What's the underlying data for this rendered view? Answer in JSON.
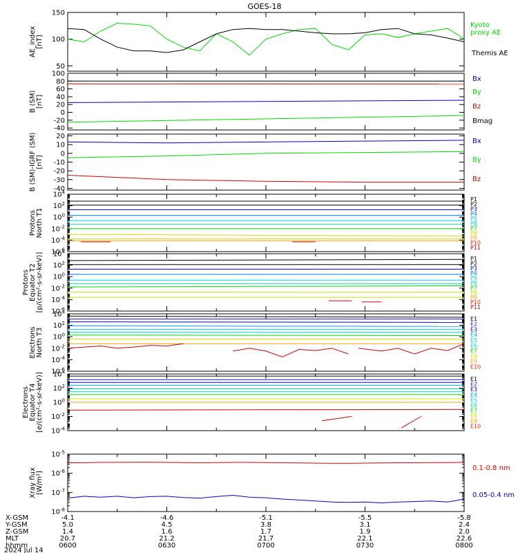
{
  "title": "GOES-18",
  "colors": {
    "P": [
      "#000000",
      "#000000",
      "#0000c8",
      "#0070ff",
      "#00c8ff",
      "#00dcb4",
      "#00dc00",
      "#c8dc00",
      "#ffa000",
      "#e62800",
      "#c80000"
    ],
    "E": [
      "#000000",
      "#1414dc",
      "#0000c8",
      "#00a0ff",
      "#00c8ff",
      "#00dcb4",
      "#00dc00",
      "#d2e600",
      "#ffa000",
      "#e62800",
      "#c80000"
    ],
    "green": "#00dc00",
    "blue": "#0000c8",
    "red": "#d20000",
    "black": "#000000"
  },
  "x_axis": {
    "rows": [
      {
        "label": "X-GSM",
        "values": [
          "-4.1",
          "-4.6",
          "-5.1",
          "-5.5",
          "-5.8"
        ]
      },
      {
        "label": "Y-GSM",
        "values": [
          "5.0",
          "4.5",
          "3.8",
          "3.1",
          "2.4"
        ]
      },
      {
        "label": "Z-GSM",
        "values": [
          "1.4",
          "1.6",
          "1.7",
          "1.9",
          "2.0"
        ]
      },
      {
        "label": "MLT",
        "values": [
          "20.7",
          "21.2",
          "21.7",
          "22.1",
          "22.6"
        ]
      },
      {
        "label": "hhmm",
        "values": [
          "0600",
          "0630",
          "0700",
          "0730",
          "0800"
        ]
      }
    ],
    "date": "2024 Jul 14"
  },
  "chart_data": [
    {
      "type": "line",
      "ylabel": "AE_index\n[nT]",
      "ylim": [
        40,
        150
      ],
      "yticks": [
        "150",
        "100",
        "50"
      ],
      "ytick_values": [
        150,
        100,
        50
      ],
      "x": [
        0,
        5,
        10,
        15,
        20,
        25,
        30,
        35,
        40,
        45,
        50,
        55,
        60,
        65,
        70,
        75,
        80,
        85,
        90,
        95,
        100,
        105,
        110,
        115,
        120
      ],
      "series": [
        {
          "name": "Kyoto proxy AE",
          "color": "green",
          "values": [
            100,
            95,
            115,
            130,
            128,
            125,
            100,
            85,
            78,
            110,
            95,
            70,
            100,
            110,
            118,
            120,
            90,
            80,
            108,
            110,
            103,
            110,
            115,
            120,
            100
          ]
        },
        {
          "name": "Themis AE",
          "color": "black",
          "values": [
            120,
            118,
            100,
            85,
            78,
            78,
            75,
            80,
            95,
            110,
            118,
            120,
            118,
            118,
            115,
            112,
            110,
            110,
            112,
            118,
            120,
            110,
            108,
            102,
            95
          ]
        }
      ],
      "legend": [
        {
          "text": "Kyoto\nproxy AE",
          "color": "green"
        },
        {
          "text": "Themis AE",
          "color": "black"
        }
      ]
    },
    {
      "type": "line",
      "ylabel": "B (SM)\n[nT]",
      "ylim": [
        -45,
        100
      ],
      "yticks": [
        "100",
        "80",
        "60",
        "40",
        "20",
        "0",
        "-20",
        "-40"
      ],
      "ytick_values": [
        100,
        80,
        60,
        40,
        20,
        0,
        -20,
        -40
      ],
      "x": [
        0,
        120
      ],
      "series": [
        {
          "name": "Bmag",
          "color": "black",
          "values": [
            80,
            80
          ]
        },
        {
          "name": "Bz",
          "color": "red",
          "values": [
            73,
            72
          ]
        },
        {
          "name": "Bx",
          "color": "blue",
          "values": [
            25,
            31
          ]
        },
        {
          "name": "By",
          "color": "green",
          "values": [
            -25,
            -8
          ]
        }
      ],
      "legend": [
        {
          "text": "Bx",
          "color": "blue"
        },
        {
          "text": "By",
          "color": "green"
        },
        {
          "text": "Bz",
          "color": "red"
        },
        {
          "text": "Bmag",
          "color": "black"
        }
      ]
    },
    {
      "type": "line",
      "ylabel": "B (SM)-IGRF (SM)\n[nT]",
      "ylim": [
        -42,
        22
      ],
      "yticks": [
        "20",
        "10",
        "0",
        "-10",
        "-20",
        "-30",
        "-40"
      ],
      "ytick_values": [
        20,
        10,
        0,
        -10,
        -20,
        -30,
        -40
      ],
      "x": [
        0,
        30,
        60,
        90,
        120
      ],
      "series": [
        {
          "name": "Bx",
          "color": "blue",
          "values": [
            13,
            12,
            13,
            14,
            15
          ]
        },
        {
          "name": "By",
          "color": "green",
          "values": [
            -5,
            -3,
            0,
            1,
            2
          ]
        },
        {
          "name": "Bz",
          "color": "red",
          "values": [
            -25,
            -30,
            -32,
            -33,
            -33
          ]
        }
      ],
      "legend": [
        {
          "text": "Bx",
          "color": "blue"
        },
        {
          "text": "By",
          "color": "green"
        },
        {
          "text": "Bz",
          "color": "red"
        }
      ]
    },
    {
      "type": "line",
      "scale": "log",
      "ylabel": "Protons\nNorth T1",
      "ylim": [
        -6,
        4
      ],
      "yticks": [
        "10^4",
        "10^2",
        "10^0",
        "10^-2",
        "10^-4",
        "10^-6"
      ],
      "ytick_values": [
        4,
        2,
        0,
        -2,
        -4,
        -6
      ],
      "x": [
        0,
        120
      ],
      "series": [
        {
          "name": "P1",
          "color": "P.0",
          "values": [
            2.8,
            2.8
          ]
        },
        {
          "name": "P2",
          "color": "P.1",
          "values": [
            2.1,
            2.1
          ]
        },
        {
          "name": "P3",
          "color": "P.2",
          "values": [
            1.3,
            1.3
          ]
        },
        {
          "name": "P4",
          "color": "P.3",
          "values": [
            0.3,
            0.3
          ]
        },
        {
          "name": "P5",
          "color": "P.4",
          "values": [
            -0.6,
            -0.6
          ]
        },
        {
          "name": "P6",
          "color": "P.5",
          "values": [
            -1.2,
            -1.2
          ]
        },
        {
          "name": "P7",
          "color": "P.6",
          "values": [
            -2.0,
            -2.0
          ]
        },
        {
          "name": "P8",
          "color": "P.7",
          "values": [
            -3.0,
            -3.3
          ]
        },
        {
          "name": "P9",
          "color": "P.7",
          "values": [
            -3.8,
            -3.8
          ]
        },
        {
          "name": "P10",
          "color": "P.8",
          "values": [
            -4.1,
            -4.1
          ]
        }
      ],
      "segments": [
        {
          "color": "P.10",
          "x": [
            4,
            13
          ],
          "y": [
            -4.3,
            -4.3
          ]
        },
        {
          "color": "P.10",
          "x": [
            68,
            75
          ],
          "y": [
            -4.3,
            -4.3
          ]
        }
      ],
      "legend": [
        "P1",
        "P2",
        "P3",
        "P4",
        "P5",
        "P6",
        "P7",
        "P8",
        "P9",
        "P10",
        "P11"
      ]
    },
    {
      "type": "line",
      "scale": "log",
      "ylabel": "Protons\nEquator T2\n[p/(cm²-s-sr-keV)]",
      "ylim": [
        -6,
        4
      ],
      "yticks": [
        "10^4",
        "10^2",
        "10^0",
        "10^-2",
        "10^-4",
        "10^-6"
      ],
      "ytick_values": [
        4,
        2,
        0,
        -2,
        -4,
        -6
      ],
      "x": [
        0,
        120
      ],
      "series": [
        {
          "name": "P1",
          "color": "P.0",
          "values": [
            2.8,
            3.0
          ]
        },
        {
          "name": "P2",
          "color": "P.1",
          "values": [
            2.1,
            2.1
          ]
        },
        {
          "name": "P3",
          "color": "P.2",
          "values": [
            1.3,
            1.3
          ]
        },
        {
          "name": "P4",
          "color": "P.3",
          "values": [
            0.4,
            0.4
          ]
        },
        {
          "name": "P5",
          "color": "P.4",
          "values": [
            -0.6,
            -0.6
          ]
        },
        {
          "name": "P6",
          "color": "P.5",
          "values": [
            -1.2,
            -1.2
          ]
        },
        {
          "name": "P7",
          "color": "P.6",
          "values": [
            -1.8,
            -1.6
          ]
        },
        {
          "name": "P8",
          "color": "P.7",
          "values": [
            -2.7,
            -2.7
          ]
        },
        {
          "name": "P9",
          "color": "P.7",
          "values": [
            -3.6,
            -3.6
          ]
        }
      ],
      "segments": [
        {
          "color": "P.10",
          "x": [
            79,
            86
          ],
          "y": [
            -4.2,
            -4.2
          ]
        },
        {
          "color": "P.10",
          "x": [
            89,
            95
          ],
          "y": [
            -4.4,
            -4.4
          ]
        }
      ],
      "legend": [
        "P1",
        "P2",
        "P3",
        "P4",
        "P5",
        "P6",
        "P7",
        "P8",
        "P9",
        "P10",
        "P11"
      ]
    },
    {
      "type": "line",
      "scale": "log",
      "ylabel": "Electrons\nNorth T3",
      "ylim": [
        -6,
        4
      ],
      "yticks": [
        "10^4",
        "10^2",
        "10^0",
        "10^-2",
        "10^-4",
        "10^-6"
      ],
      "ytick_values": [
        4,
        2,
        0,
        -2,
        -4,
        -6
      ],
      "x": [
        0,
        120
      ],
      "series": [
        {
          "name": "E1",
          "color": "E.0",
          "values": [
            3.6,
            3.4
          ]
        },
        {
          "name": "E2",
          "color": "E.1",
          "values": [
            3.1,
            3.1
          ]
        },
        {
          "name": "E3",
          "color": "E.2",
          "values": [
            2.6,
            2.5
          ]
        },
        {
          "name": "E4",
          "color": "E.3",
          "values": [
            1.9,
            1.8
          ]
        },
        {
          "name": "E5",
          "color": "E.4",
          "values": [
            1.3,
            1.3
          ]
        },
        {
          "name": "E6",
          "color": "E.5",
          "values": [
            0.8,
            0.8
          ]
        },
        {
          "name": "E7",
          "color": "E.6",
          "values": [
            0.3,
            0.2
          ]
        },
        {
          "name": "E8",
          "color": "E.7",
          "values": [
            -0.4,
            -0.4
          ]
        },
        {
          "name": "E9",
          "color": "E.8",
          "values": [
            -1.2,
            -1.2
          ]
        }
      ],
      "segments": [
        {
          "color": "E.10",
          "x": [
            0,
            5,
            10,
            15,
            20,
            25,
            30,
            35
          ],
          "y": [
            -2.0,
            -1.8,
            -1.6,
            -2.0,
            -1.8,
            -1.5,
            -1.6,
            -1.2
          ]
        },
        {
          "color": "E.10",
          "x": [
            50,
            55,
            60,
            65,
            70,
            75,
            80
          ],
          "y": [
            -2.5,
            -2.0,
            -2.5,
            -3.5,
            -2.2,
            -2.4,
            -2.0
          ]
        },
        {
          "color": "E.10",
          "x": [
            80,
            85
          ],
          "y": [
            -2.0,
            -3.0
          ]
        },
        {
          "color": "E.10",
          "x": [
            88,
            95,
            100,
            105,
            110,
            115,
            120
          ],
          "y": [
            -2.0,
            -2.5,
            -2.0,
            -3.0,
            -2.0,
            -2.4,
            -1.2
          ]
        }
      ],
      "legend": [
        "E1",
        "E2",
        "E3",
        "E4",
        "E5",
        "E6",
        "E7",
        "E8",
        "E9",
        "E10"
      ]
    },
    {
      "type": "line",
      "scale": "log",
      "ylabel": "Electrons\nEquator T4\n[e/(cm²-s-sr-keV)]",
      "ylim": [
        -4,
        4
      ],
      "yticks": [
        "10^4",
        "10^2",
        "10^0",
        "10^-2",
        "10^-4"
      ],
      "ytick_values": [
        4,
        2,
        0,
        -2,
        -4
      ],
      "x": [
        0,
        120
      ],
      "series": [
        {
          "name": "E1",
          "color": "E.0",
          "values": [
            3.7,
            3.7
          ]
        },
        {
          "name": "E2",
          "color": "E.1",
          "values": [
            3.2,
            3.2
          ]
        },
        {
          "name": "E3",
          "color": "E.2",
          "values": [
            2.8,
            2.8
          ]
        },
        {
          "name": "E4",
          "color": "E.3",
          "values": [
            2.4,
            2.4
          ]
        },
        {
          "name": "E5",
          "color": "E.4",
          "values": [
            1.9,
            1.9
          ]
        },
        {
          "name": "E6",
          "color": "E.5",
          "values": [
            1.5,
            1.5
          ]
        },
        {
          "name": "E7",
          "color": "E.6",
          "values": [
            1.1,
            1.1
          ]
        },
        {
          "name": "E8",
          "color": "E.7",
          "values": [
            0.5,
            0.5
          ]
        },
        {
          "name": "E9",
          "color": "E.8",
          "values": [
            0.0,
            0.0
          ]
        },
        {
          "name": "E10",
          "color": "E.10",
          "values": [
            -1.1,
            -1.0
          ]
        }
      ],
      "segments": [
        {
          "color": "E.10",
          "x": [
            77,
            86
          ],
          "y": [
            -2.6,
            -2.0
          ]
        },
        {
          "color": "E.10",
          "x": [
            101,
            107
          ],
          "y": [
            -3.6,
            -2.0
          ]
        }
      ],
      "legend": [
        "E1",
        "E2",
        "E3",
        "E4",
        "E5",
        "E6",
        "E7",
        "E8",
        "E9",
        "E10"
      ]
    },
    {
      "type": "line",
      "scale": "log",
      "ylabel": "Xray  flux\n[W/m²]",
      "ylim": [
        -8,
        -5
      ],
      "yticks": [
        "10^-5",
        "10^-6",
        "10^-7",
        "10^-8"
      ],
      "ytick_values": [
        -5,
        -6,
        -7,
        -8
      ],
      "x": [
        0,
        5,
        10,
        15,
        20,
        25,
        30,
        35,
        40,
        45,
        50,
        55,
        60,
        65,
        70,
        75,
        80,
        85,
        90,
        95,
        100,
        105,
        110,
        115,
        120
      ],
      "series": [
        {
          "name": "0.1-0.8 nm",
          "color": "red",
          "values": [
            -5.45,
            -5.45,
            -5.43,
            -5.43,
            -5.42,
            -5.42,
            -5.43,
            -5.44,
            -5.45,
            -5.44,
            -5.43,
            -5.43,
            -5.44,
            -5.45,
            -5.46,
            -5.47,
            -5.48,
            -5.48,
            -5.47,
            -5.46,
            -5.45,
            -5.45,
            -5.44,
            -5.44,
            -5.43
          ]
        },
        {
          "name": "0.05-0.4 nm",
          "color": "blue",
          "values": [
            -7.3,
            -7.2,
            -7.25,
            -7.2,
            -7.28,
            -7.22,
            -7.2,
            -7.27,
            -7.3,
            -7.22,
            -7.15,
            -7.25,
            -7.28,
            -7.35,
            -7.4,
            -7.45,
            -7.5,
            -7.52,
            -7.5,
            -7.55,
            -7.5,
            -7.48,
            -7.45,
            -7.5,
            -7.35
          ]
        }
      ],
      "legend": [
        {
          "text": "0.1-0.8 nm",
          "color": "red"
        },
        {
          "text": "0.05-0.4 nm",
          "color": "blue"
        }
      ]
    }
  ]
}
